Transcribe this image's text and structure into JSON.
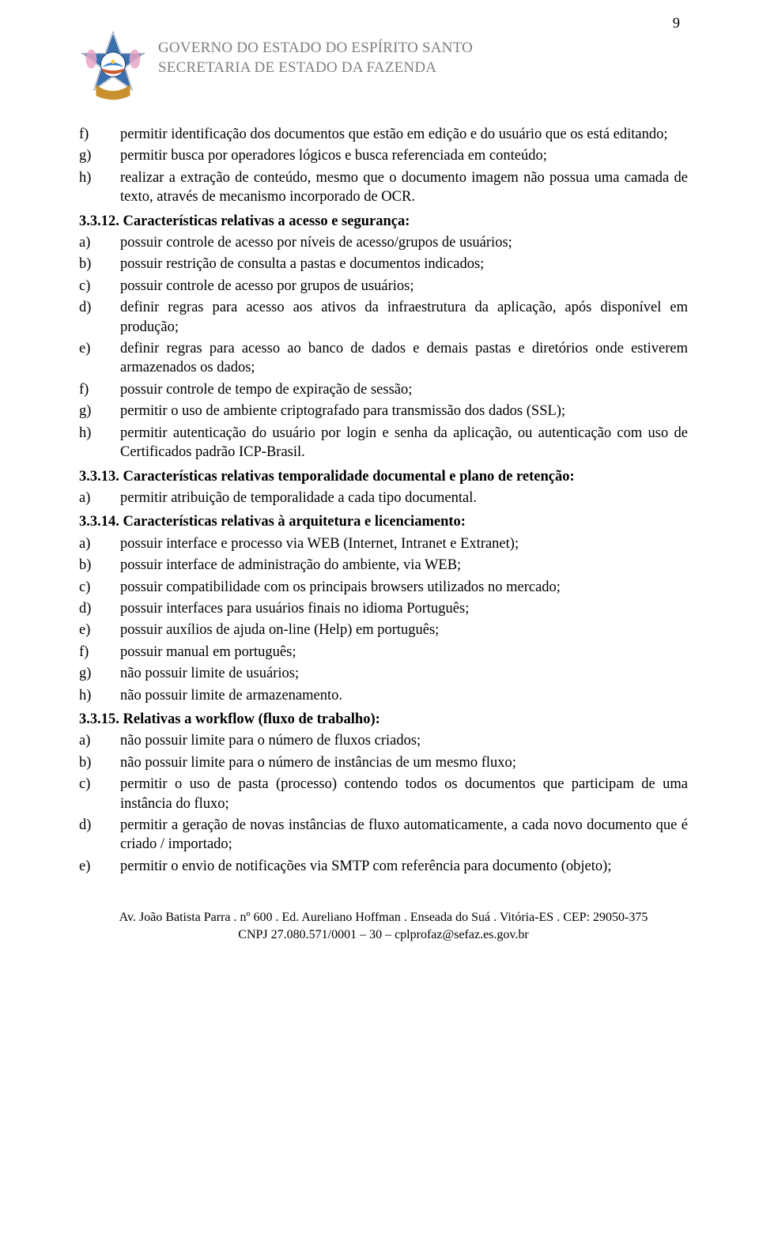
{
  "page_number": "9",
  "header": {
    "line1": "GOVERNO DO ESTADO DO ESPÍRITO SANTO",
    "line2": "SECRETARIA DE ESTADO DA FAZENDA"
  },
  "pre_items": [
    {
      "mk": "f)",
      "tx": "permitir identificação dos documentos que estão em edição e do usuário que os está editando;"
    },
    {
      "mk": "g)",
      "tx": "permitir busca por operadores lógicos e busca referenciada em conteúdo;"
    },
    {
      "mk": "h)",
      "tx": "realizar a extração de conteúdo, mesmo que o documento imagem não possua uma camada de texto, através de mecanismo incorporado de OCR."
    }
  ],
  "s1": {
    "heading": "3.3.12. Características relativas a acesso e segurança:",
    "items": [
      {
        "mk": "a)",
        "tx": "possuir controle de acesso por níveis de acesso/grupos de usuários;"
      },
      {
        "mk": "b)",
        "tx": "possuir restrição de consulta a pastas e documentos indicados;"
      },
      {
        "mk": "c)",
        "tx": "possuir controle de acesso por grupos de usuários;"
      },
      {
        "mk": "d)",
        "tx": "definir regras para acesso aos ativos da infraestrutura da aplicação, após disponível em produção;"
      },
      {
        "mk": "e)",
        "tx": "definir regras para acesso ao banco de dados e demais pastas e diretórios onde estiverem armazenados os dados;",
        "justify": true
      },
      {
        "mk": "f)",
        "tx": "possuir controle de tempo de expiração de sessão;"
      },
      {
        "mk": "g)",
        "tx": "permitir o uso de ambiente criptografado para transmissão dos dados (SSL);"
      },
      {
        "mk": "h)",
        "tx": "permitir autenticação do usuário por login e senha da  aplicação, ou autenticação com uso de Certificados padrão ICP-Brasil."
      }
    ]
  },
  "s2": {
    "heading": "3.3.13. Características relativas temporalidade documental e plano de retenção:",
    "items": [
      {
        "mk": "a)",
        "tx": "permitir atribuição de temporalidade a cada tipo documental."
      }
    ]
  },
  "s3": {
    "heading": "3.3.14. Características relativas à arquitetura e licenciamento:",
    "items": [
      {
        "mk": "a)",
        "tx": "possuir interface e processo via WEB (Internet, Intranet e Extranet);"
      },
      {
        "mk": "b)",
        "tx": "possuir interface de administração do ambiente, via WEB;"
      },
      {
        "mk": "c)",
        "tx": "possuir compatibilidade com os principais browsers utilizados no mercado;"
      },
      {
        "mk": "d)",
        "tx": "possuir interfaces para usuários finais no idioma Português;"
      },
      {
        "mk": "e)",
        "tx": "possuir auxílios de ajuda on-line (Help) em português;"
      },
      {
        "mk": "f)",
        "tx": "possuir manual em português;"
      },
      {
        "mk": "g)",
        "tx": "não possuir limite de usuários;"
      },
      {
        "mk": "h)",
        "tx": "não possuir limite de armazenamento."
      }
    ]
  },
  "s4": {
    "heading": "3.3.15. Relativas a workflow (fluxo de trabalho):",
    "items": [
      {
        "mk": "a)",
        "tx": "não possuir limite para o número de fluxos criados;"
      },
      {
        "mk": "b)",
        "tx": "não possuir limite para o número de instâncias de um mesmo fluxo;"
      },
      {
        "mk": "c)",
        "tx": "permitir o uso de pasta (processo) contendo todos os documentos que participam de uma instância do fluxo;",
        "justify": true
      },
      {
        "mk": "d)",
        "tx": "permitir a geração de novas instâncias de fluxo automaticamente, a cada novo documento que é criado / importado;",
        "justify": true
      },
      {
        "mk": "e)",
        "tx": "permitir o envio de notificações via SMTP com referência para documento (objeto);"
      }
    ]
  },
  "footer": {
    "line1": "Av. João Batista Parra . nº 600 . Ed. Aureliano Hoffman . Enseada do Suá . Vitória-ES . CEP: 29050-375",
    "line2": "CNPJ 27.080.571/0001 – 30 – cplprofaz@sefaz.es.gov.br"
  }
}
